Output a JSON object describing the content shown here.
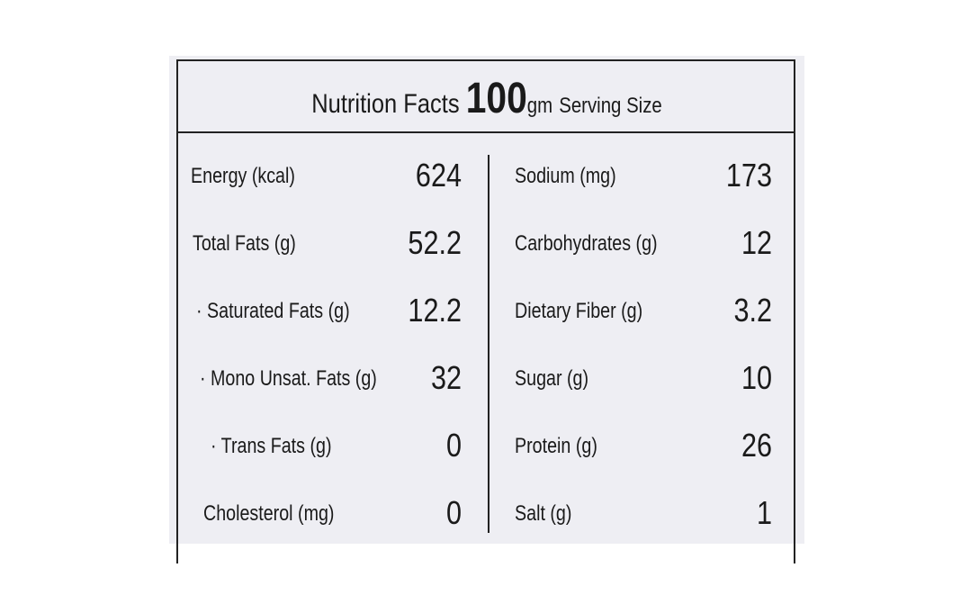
{
  "header": {
    "title": "Nutrition Facts",
    "serving_amount": "100",
    "serving_unit": "gm",
    "serving_label": "Serving Size"
  },
  "table": {
    "left": [
      [
        "Energy (kcal)",
        "624"
      ],
      [
        "Total Fats (g)",
        "52.2"
      ],
      [
        "· Saturated Fats (g)",
        "12.2"
      ],
      [
        "· Mono Unsat. Fats (g)",
        "32"
      ],
      [
        "· Trans Fats (g)",
        "0"
      ],
      [
        "Cholesterol (mg)",
        "0"
      ]
    ],
    "right": [
      [
        "Sodium (mg)",
        "173"
      ],
      [
        "Carbohydrates (g)",
        "12"
      ],
      [
        "Dietary Fiber (g)",
        "3.2"
      ],
      [
        "Sugar (g)",
        "10"
      ],
      [
        "Protein (g)",
        "26"
      ],
      [
        "Salt (g)",
        "1"
      ]
    ]
  }
}
